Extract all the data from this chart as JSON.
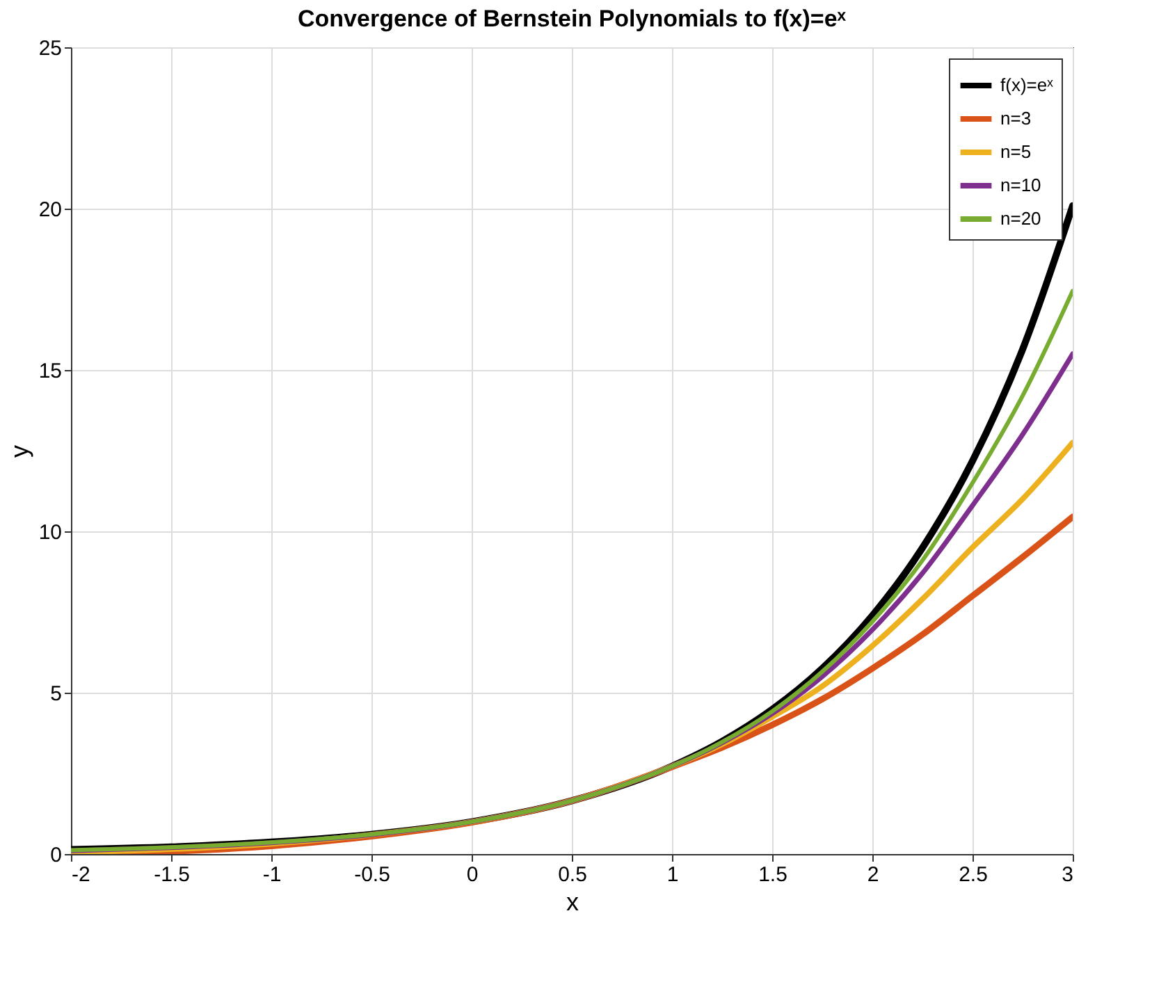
{
  "chart_data": {
    "type": "line",
    "title": "Convergence of Bernstein Polynomials to f(x)=eˣ",
    "xlabel": "x",
    "ylabel": "y",
    "x": [
      -2,
      -1.5,
      -1,
      -0.5,
      0,
      0.5,
      1,
      1.25,
      1.5,
      1.75,
      2,
      2.25,
      2.5,
      2.75,
      3
    ],
    "series": [
      {
        "name": "f(x)=eˣ",
        "color": "#000000",
        "values": [
          0.14,
          0.22,
          0.37,
          0.61,
          1,
          1.65,
          2.72,
          3.49,
          4.48,
          5.75,
          7.39,
          9.49,
          12.18,
          15.64,
          20.09
        ]
      },
      {
        "name": "n=3",
        "color": "#d95319",
        "values": [
          0.0,
          0.08,
          0.25,
          0.55,
          0.98,
          1.65,
          2.7,
          3.3,
          4.0,
          4.8,
          5.75,
          6.8,
          8.0,
          9.2,
          10.45
        ]
      },
      {
        "name": "n=5",
        "color": "#edb120",
        "values": [
          0.05,
          0.15,
          0.32,
          0.6,
          1,
          1.65,
          2.72,
          3.4,
          4.25,
          5.2,
          6.45,
          7.9,
          9.5,
          11.0,
          12.75
        ]
      },
      {
        "name": "n=10",
        "color": "#7e2f8e",
        "values": [
          0.1,
          0.2,
          0.35,
          0.6,
          1,
          1.65,
          2.72,
          3.45,
          4.35,
          5.5,
          6.95,
          8.7,
          10.8,
          13.0,
          15.5
        ]
      },
      {
        "name": "n=20",
        "color": "#77ac30",
        "values": [
          0.12,
          0.21,
          0.36,
          0.61,
          1,
          1.65,
          2.72,
          3.47,
          4.42,
          5.65,
          7.2,
          9.1,
          11.5,
          14.2,
          17.45
        ]
      }
    ],
    "xlim": [
      -2,
      3
    ],
    "xticks": [
      -2,
      -1.5,
      -1,
      -0.5,
      0,
      0.5,
      1,
      1.5,
      2,
      2.5,
      3
    ],
    "ylim": [
      0,
      25
    ],
    "yticks": [
      0,
      5,
      10,
      15,
      20,
      25
    ],
    "grid": true,
    "legend": "top right",
    "line_style": "solid",
    "marker": "none"
  }
}
